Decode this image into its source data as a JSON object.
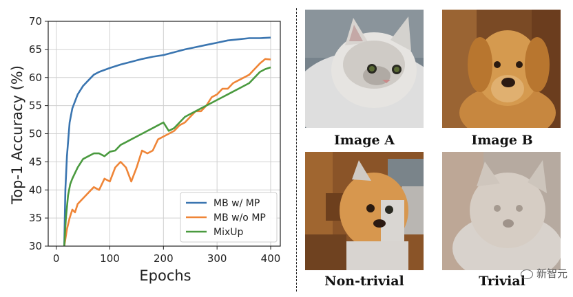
{
  "chart_data": {
    "type": "line",
    "xlabel": "Epochs",
    "ylabel": "Top-1 Accuracy (%)",
    "xlim": [
      -15,
      418
    ],
    "ylim": [
      30,
      70
    ],
    "xticks": [
      0,
      100,
      200,
      300,
      400
    ],
    "yticks": [
      30,
      35,
      40,
      45,
      50,
      55,
      60,
      65,
      70
    ],
    "grid": true,
    "legend_position": "lower-right",
    "series": [
      {
        "name": "MB w/ MP",
        "color": "#3a75b0",
        "x": [
          15,
          17,
          20,
          25,
          30,
          40,
          50,
          60,
          70,
          80,
          100,
          120,
          140,
          160,
          180,
          200,
          220,
          240,
          260,
          280,
          300,
          320,
          340,
          360,
          380,
          400
        ],
        "y": [
          30,
          40,
          46,
          52,
          54.5,
          57,
          58.5,
          59.5,
          60.5,
          61,
          61.7,
          62.3,
          62.8,
          63.3,
          63.7,
          64,
          64.5,
          65,
          65.4,
          65.8,
          66.2,
          66.6,
          66.8,
          67,
          67,
          67.1
        ]
      },
      {
        "name": "MB w/o MP",
        "color": "#ef8537",
        "x": [
          15,
          20,
          25,
          30,
          35,
          40,
          50,
          60,
          70,
          80,
          90,
          100,
          110,
          120,
          130,
          140,
          150,
          160,
          170,
          180,
          190,
          200,
          210,
          220,
          230,
          240,
          250,
          260,
          270,
          280,
          290,
          300,
          310,
          320,
          330,
          340,
          350,
          360,
          370,
          380,
          390,
          400
        ],
        "y": [
          30,
          33,
          35,
          36.5,
          36,
          37.5,
          38.5,
          39.5,
          40.5,
          40,
          42,
          41.5,
          44,
          45,
          44,
          41.5,
          44,
          47,
          46.5,
          47,
          49,
          49.5,
          50,
          50.5,
          51.5,
          52,
          53,
          54,
          54,
          55,
          56.5,
          57,
          58,
          58,
          59,
          59.5,
          60,
          60.5,
          61.5,
          62.5,
          63.3,
          63.2
        ]
      },
      {
        "name": "MixUp",
        "color": "#4a9a3f",
        "x": [
          15,
          18,
          22,
          26,
          30,
          35,
          40,
          50,
          60,
          70,
          80,
          90,
          100,
          110,
          120,
          130,
          140,
          150,
          160,
          170,
          180,
          190,
          200,
          210,
          220,
          230,
          240,
          250,
          260,
          270,
          280,
          290,
          300,
          310,
          320,
          330,
          340,
          350,
          360,
          370,
          380,
          390,
          400
        ],
        "y": [
          30,
          35,
          39,
          41,
          42,
          43,
          44,
          45.5,
          46,
          46.5,
          46.5,
          46,
          46.8,
          47,
          48,
          48.5,
          49,
          49.5,
          50,
          50.5,
          51,
          51.5,
          52,
          50.5,
          51,
          52,
          53,
          53.5,
          54,
          54.5,
          55,
          55.5,
          56,
          56.5,
          57,
          57.5,
          58,
          58.5,
          59,
          60,
          61,
          61.5,
          61.8
        ]
      }
    ]
  },
  "images": {
    "a_caption": "Image A",
    "b_caption": "Image B",
    "nontrivial_caption": "Non-trivial",
    "trivial_caption": "Trivial"
  },
  "watermark": {
    "text": "新智元"
  }
}
